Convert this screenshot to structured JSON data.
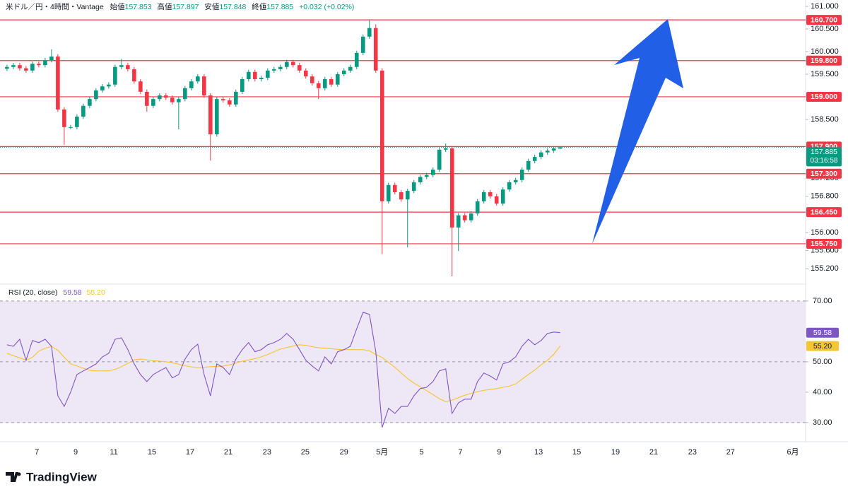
{
  "header": {
    "symbol": "米ドル／円・4時間・Vantage",
    "open_label": "始値",
    "high_label": "高値",
    "low_label": "安値",
    "close_label": "終値",
    "change": "+0.032 (+0.02%)"
  },
  "footer": {
    "brand": "TradingView"
  },
  "chart_data": [
    {
      "type": "candlestick",
      "open": [
        159.62,
        159.66,
        159.7,
        159.63,
        159.58,
        159.73,
        159.7,
        159.81,
        159.89,
        158.72,
        158.33,
        158.33,
        158.56,
        158.8,
        158.95,
        159.14,
        159.23,
        159.27,
        159.66,
        159.7,
        159.61,
        159.34,
        159.11,
        158.8,
        158.95,
        159.03,
        158.98,
        158.88,
        158.95,
        159.19,
        159.34,
        159.45,
        159.03,
        158.17,
        158.95,
        158.92,
        158.83,
        159.11,
        159.39,
        159.55,
        159.39,
        159.42,
        159.58,
        159.61,
        159.66,
        159.77,
        159.7,
        159.58,
        159.45,
        159.3,
        159.19,
        159.39,
        159.27,
        159.5,
        159.58,
        159.66,
        159.97,
        160.33,
        160.52,
        159.58,
        156.69,
        157.05,
        156.89,
        156.73,
        156.92,
        157.11,
        157.23,
        157.27,
        157.39,
        157.83,
        157.86,
        156.11,
        156.38,
        156.27,
        156.42,
        156.69,
        156.89,
        156.8,
        156.64,
        156.95,
        157.11,
        157.16,
        157.39,
        157.58,
        157.67,
        157.77,
        157.81,
        157.853
      ],
      "high": [
        159.71,
        159.75,
        159.75,
        159.68,
        159.78,
        159.78,
        159.86,
        160.05,
        159.94,
        158.77,
        158.38,
        158.61,
        158.85,
        159.0,
        159.19,
        159.28,
        159.32,
        159.71,
        159.84,
        159.75,
        159.66,
        159.39,
        159.16,
        159.0,
        159.08,
        159.08,
        159.03,
        159.0,
        159.24,
        159.39,
        159.5,
        159.5,
        159.08,
        159.0,
        159.0,
        158.97,
        159.16,
        159.44,
        159.6,
        159.6,
        159.47,
        159.63,
        159.66,
        159.71,
        159.82,
        159.82,
        159.75,
        159.63,
        159.5,
        159.35,
        159.44,
        159.44,
        159.55,
        159.63,
        159.71,
        160.02,
        160.38,
        160.7,
        160.6,
        159.63,
        157.1,
        157.1,
        156.94,
        156.97,
        157.16,
        157.28,
        157.32,
        157.44,
        157.88,
        157.97,
        157.91,
        156.43,
        156.43,
        156.47,
        156.74,
        156.94,
        156.94,
        156.85,
        157.0,
        157.16,
        157.21,
        157.44,
        157.63,
        157.72,
        157.82,
        157.86,
        157.91,
        157.897
      ],
      "low": [
        159.57,
        159.61,
        159.58,
        159.53,
        159.53,
        159.65,
        159.65,
        159.76,
        158.67,
        157.94,
        158.28,
        158.28,
        158.51,
        158.75,
        158.9,
        159.09,
        159.18,
        159.22,
        159.61,
        159.56,
        159.29,
        159.06,
        158.67,
        158.75,
        158.9,
        158.93,
        158.83,
        158.28,
        158.9,
        159.14,
        159.29,
        158.98,
        157.59,
        158.12,
        158.87,
        158.78,
        158.78,
        159.06,
        159.34,
        159.34,
        159.34,
        159.37,
        159.53,
        159.56,
        159.61,
        159.65,
        159.53,
        159.4,
        159.25,
        158.95,
        159.14,
        159.22,
        159.22,
        159.45,
        159.53,
        159.61,
        159.92,
        160.28,
        159.53,
        155.52,
        156.64,
        156.84,
        156.68,
        155.67,
        156.87,
        157.06,
        157.18,
        157.22,
        157.34,
        157.78,
        155.03,
        155.59,
        156.22,
        156.22,
        156.37,
        156.64,
        156.75,
        156.59,
        156.59,
        156.9,
        157.06,
        157.11,
        157.34,
        157.53,
        157.62,
        157.72,
        157.76,
        157.848
      ],
      "close": [
        159.66,
        159.7,
        159.63,
        159.58,
        159.73,
        159.7,
        159.81,
        159.89,
        158.72,
        158.33,
        158.33,
        158.56,
        158.8,
        158.95,
        159.14,
        159.23,
        159.27,
        159.66,
        159.7,
        159.61,
        159.34,
        159.11,
        158.8,
        158.95,
        159.03,
        158.98,
        158.88,
        158.95,
        159.19,
        159.34,
        159.45,
        159.03,
        158.17,
        158.95,
        158.92,
        158.83,
        159.11,
        159.39,
        159.55,
        159.39,
        159.42,
        159.58,
        159.61,
        159.66,
        159.77,
        159.7,
        159.58,
        159.45,
        159.3,
        159.19,
        159.39,
        159.27,
        159.5,
        159.58,
        159.66,
        159.97,
        160.33,
        160.52,
        159.58,
        156.69,
        157.05,
        156.89,
        156.73,
        156.92,
        157.11,
        157.23,
        157.27,
        157.39,
        157.83,
        157.86,
        156.11,
        156.38,
        156.27,
        156.42,
        156.69,
        156.89,
        156.8,
        156.64,
        156.95,
        157.11,
        157.16,
        157.39,
        157.58,
        157.67,
        157.77,
        157.81,
        157.86,
        157.885
      ],
      "up_color": "#089981",
      "down_color": "#f23645",
      "countdown": "03:16:58",
      "ylim": [
        154.89,
        161.14
      ],
      "yticks": [
        {
          "value": 161,
          "label": "161.000"
        },
        {
          "value": 160.5,
          "label": "160.500"
        },
        {
          "value": 160,
          "label": "160.000"
        },
        {
          "value": 159.5,
          "label": "159.500"
        },
        {
          "value": 158.5,
          "label": "158.500"
        },
        {
          "value": 157.2,
          "label": "157.200"
        },
        {
          "value": 156.8,
          "label": "156.800"
        },
        {
          "value": 156,
          "label": "156.000"
        },
        {
          "value": 155.6,
          "label": "155.600"
        },
        {
          "value": 155.2,
          "label": "155.200"
        }
      ],
      "levels": [
        {
          "value": 160.7,
          "label": "160.700"
        },
        {
          "value": 159.8,
          "label": "159.800"
        },
        {
          "value": 159,
          "label": "159.000"
        },
        {
          "value": 157.9,
          "label": "157.900"
        },
        {
          "value": 157.3,
          "label": "157.300"
        },
        {
          "value": 156.45,
          "label": "156.450"
        },
        {
          "value": 155.75,
          "label": "155.750"
        }
      ],
      "level_color": "#f23645",
      "xlim": [
        -1.1,
        125.6
      ],
      "xticks": [
        {
          "value": 4.7,
          "label": "7"
        },
        {
          "value": 10.8,
          "label": "9"
        },
        {
          "value": 16.8,
          "label": "11"
        },
        {
          "value": 22.8,
          "label": "15"
        },
        {
          "value": 28.8,
          "label": "17"
        },
        {
          "value": 34.8,
          "label": "21"
        },
        {
          "value": 40.9,
          "label": "23"
        },
        {
          "value": 46.9,
          "label": "25"
        },
        {
          "value": 53,
          "label": "29"
        },
        {
          "value": 59,
          "label": "5月"
        },
        {
          "value": 65.2,
          "label": "5"
        },
        {
          "value": 71.3,
          "label": "7"
        },
        {
          "value": 77.4,
          "label": "9"
        },
        {
          "value": 83.6,
          "label": "13"
        },
        {
          "value": 89.6,
          "label": "15"
        },
        {
          "value": 95.7,
          "label": "19"
        },
        {
          "value": 101.7,
          "label": "21"
        },
        {
          "value": 107.8,
          "label": "23"
        },
        {
          "value": 113.8,
          "label": "27"
        },
        {
          "value": 123.6,
          "label": "6月"
        }
      ],
      "grid": false
    },
    {
      "type": "line",
      "title": "RSI (20, close)",
      "series": [
        {
          "color": "#7e57c2",
          "values": [
            55.6,
            55.1,
            57.4,
            50.5,
            57.0,
            56.3,
            57.4,
            55.1,
            38.8,
            35.3,
            40.0,
            45.8,
            47.0,
            48.1,
            49.3,
            51.6,
            52.8,
            57.4,
            57.9,
            54.0,
            49.3,
            45.8,
            43.5,
            45.8,
            47.0,
            48.1,
            44.7,
            45.8,
            50.9,
            54.0,
            55.8,
            45.8,
            38.8,
            49.3,
            48.1,
            45.8,
            50.9,
            54.0,
            56.3,
            53.3,
            54.0,
            55.6,
            56.3,
            57.4,
            59.3,
            57.4,
            54.0,
            50.5,
            48.6,
            47.0,
            51.6,
            49.3,
            53.3,
            54.0,
            55.1,
            60.9,
            66.3,
            65.6,
            53.3,
            28.4,
            34.7,
            33.0,
            35.3,
            35.3,
            38.8,
            41.2,
            41.6,
            43.5,
            47.0,
            47.7,
            33.0,
            36.5,
            37.7,
            37.7,
            43.5,
            46.3,
            45.3,
            44.0,
            49.3,
            50.0,
            51.6,
            55.1,
            57.4,
            55.6,
            57.0,
            59.3,
            59.8,
            59.58
          ]
        },
        {
          "color": "#f7c530",
          "values": [
            52.8,
            52.0,
            51.3,
            50.5,
            51.5,
            53.5,
            54.5,
            55.0,
            53.8,
            51.5,
            49.3,
            48.6,
            47.9,
            47.2,
            47.0,
            47.0,
            47.0,
            47.5,
            48.4,
            49.5,
            50.6,
            50.9,
            50.6,
            50.4,
            50.2,
            50.0,
            49.7,
            49.2,
            48.7,
            48.3,
            48.1,
            48.2,
            48.4,
            48.5,
            48.6,
            49.0,
            49.6,
            50.2,
            50.6,
            51.0,
            51.6,
            52.4,
            53.3,
            54.2,
            54.7,
            55.2,
            55.6,
            55.4,
            55.0,
            54.6,
            54.5,
            54.3,
            54.1,
            54.0,
            54.0,
            54.0,
            54.0,
            53.6,
            52.4,
            51.4,
            49.8,
            48.2,
            46.3,
            44.5,
            43.0,
            41.8,
            40.5,
            39.2,
            37.9,
            36.9,
            37.4,
            38.2,
            39.0,
            39.6,
            40.2,
            40.6,
            40.9,
            41.2,
            41.6,
            42.0,
            42.7,
            44.3,
            45.8,
            47.3,
            49.0,
            50.5,
            52.5,
            55.2
          ],
          "value_labels": {
            "87": "55.20"
          }
        }
      ],
      "ylim": [
        24.4,
        75.1
      ],
      "yticks": [
        {
          "value": 70,
          "label": "70.00"
        },
        {
          "value": 50,
          "label": "50.00"
        },
        {
          "value": 40,
          "label": "40.00"
        },
        {
          "value": 30,
          "label": "30.00"
        }
      ],
      "hlines": [
        70,
        50,
        30
      ],
      "band_color": "#ede7f6"
    }
  ]
}
